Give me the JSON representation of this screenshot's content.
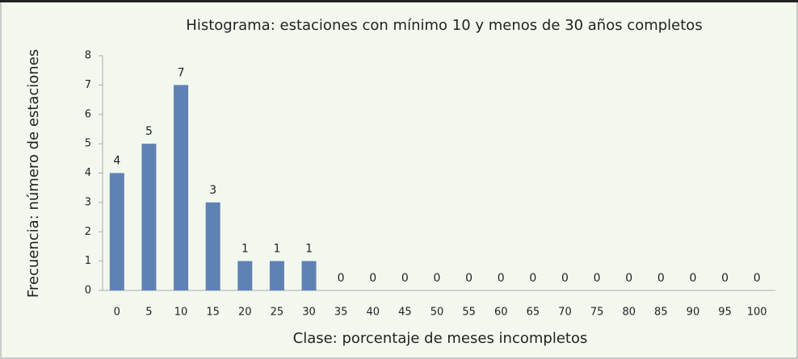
{
  "chart_data": {
    "type": "bar",
    "title": "Histograma: estaciones con mínimo 10 y menos de 30 años completos",
    "x_label": "Clase: porcentaje de meses incompletos",
    "y_label": "Frecuencia: número de estaciones",
    "categories": [
      "0",
      "5",
      "10",
      "15",
      "20",
      "25",
      "30",
      "35",
      "40",
      "45",
      "50",
      "55",
      "60",
      "65",
      "70",
      "75",
      "80",
      "85",
      "90",
      "95",
      "100"
    ],
    "values": [
      4,
      5,
      7,
      3,
      1,
      1,
      1,
      0,
      0,
      0,
      0,
      0,
      0,
      0,
      0,
      0,
      0,
      0,
      0,
      0,
      0
    ],
    "color": "#5f82b5",
    "ylim": [
      0,
      8
    ],
    "yticks": [
      0,
      1,
      2,
      3,
      4,
      5,
      6,
      7,
      8
    ],
    "grid": false
  }
}
